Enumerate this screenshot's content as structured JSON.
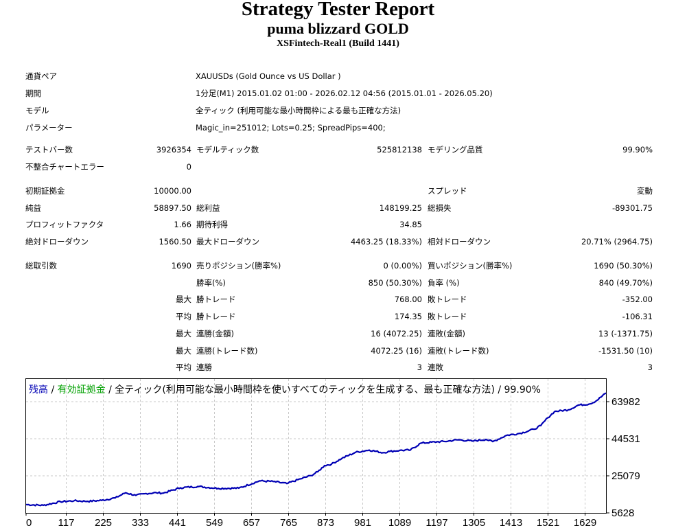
{
  "header": {
    "title": "Strategy Tester Report",
    "ea_name": "puma blizzard GOLD",
    "server": "XSFintech-Real1 (Build 1441)"
  },
  "info": [
    {
      "label": "通貨ペア",
      "value": "XAUUSDs (Gold Ounce vs US Dollar )"
    },
    {
      "label": "期間",
      "value": "1分足(M1) 2015.01.02 01:00 - 2026.02.12 04:56 (2015.01.01 - 2026.05.20)"
    },
    {
      "label": "モデル",
      "value": "全ティック (利用可能な最小時間枠による最も正確な方法)"
    },
    {
      "label": "パラメーター",
      "value": "Magic_in=251012; Lots=0.25; SpreadPips=400;"
    }
  ],
  "stats": {
    "bars_label": "テストバー数",
    "bars": "3926354",
    "ticks_label": "モデルティック数",
    "ticks": "525812138",
    "quality_label": "モデリング品質",
    "quality": "99.90%",
    "mismatch_label": "不整合チャートエラー",
    "mismatch": "0",
    "deposit_label": "初期証拠金",
    "deposit": "10000.00",
    "spread_label": "スプレッド",
    "spread": "変動",
    "net_label": "純益",
    "net": "58897.50",
    "gross_profit_label": "総利益",
    "gross_profit": "148199.25",
    "gross_loss_label": "総損失",
    "gross_loss": "-89301.75",
    "pf_label": "プロフィットファクタ",
    "pf": "1.66",
    "expected_label": "期待利得",
    "expected": "34.85",
    "abs_dd_label": "絶対ドローダウン",
    "abs_dd": "1560.50",
    "max_dd_label": "最大ドローダウン",
    "max_dd": "4463.25 (18.33%)",
    "rel_dd_label": "相対ドローダウン",
    "rel_dd": "20.71% (2964.75)",
    "trades_label": "総取引数",
    "trades": "1690",
    "short_label": "売りポジション(勝率%)",
    "short": "0 (0.00%)",
    "long_label": "買いポジション(勝率%)",
    "long": "1690 (50.30%)",
    "win_label": "勝率(%)",
    "win": "850 (50.30%)",
    "loss_label": "負率 (%)",
    "loss": "840 (49.70%)",
    "max_word": "最大",
    "avg_word": "平均",
    "win_trade_label": "勝トレード",
    "loss_trade_label": "敗トレード",
    "largest_win": "768.00",
    "largest_loss": "-352.00",
    "avg_win": "174.35",
    "avg_loss": "-106.31",
    "consec_win_amt_label": "連勝(金額)",
    "consec_win_amt": "16 (4072.25)",
    "consec_loss_amt_label": "連敗(金額)",
    "consec_loss_amt": "13 (-1371.75)",
    "consec_win_cnt_label": "連勝(トレード数)",
    "consec_win_cnt": "4072.25 (16)",
    "consec_loss_cnt_label": "連敗(トレード数)",
    "consec_loss_cnt": "-1531.50 (10)",
    "avg_consec_win_label": "連勝",
    "avg_consec_win": "3",
    "avg_consec_loss_label": "連敗",
    "avg_consec_loss": "3"
  },
  "chart_data": {
    "type": "line",
    "legend": {
      "balance": "残高",
      "sep1": " / ",
      "equity": "有効証拠金",
      "rest": " / 全ティック(利用可能な最小時間枠を使いすべてのティックを生成する、最も正確な方法) / 99.90%"
    },
    "colors": {
      "balance": "#0000b4",
      "equity": "#00a000",
      "grid": "#c8c8c8"
    },
    "y_ticks": [
      5628,
      25079,
      44531,
      63982
    ],
    "x_ticks": [
      0,
      117,
      225,
      333,
      441,
      549,
      657,
      765,
      873,
      981,
      1089,
      1197,
      1305,
      1413,
      1521,
      1629
    ],
    "xlim": [
      0,
      1690
    ],
    "ylim": [
      5628,
      63982
    ],
    "series": [
      {
        "x": [
          0,
          50,
          100,
          140,
          180,
          220,
          260,
          290,
          320,
          350,
          380,
          400,
          450,
          500,
          560,
          620,
          680,
          720,
          760,
          800,
          830,
          850,
          870,
          890,
          920,
          960,
          1000,
          1040,
          1060,
          1089,
          1120,
          1150,
          1197,
          1220,
          1260,
          1300,
          1340,
          1360,
          1400,
          1440,
          1480,
          1500,
          1520,
          1540,
          1580,
          1610,
          1640,
          1660,
          1690
        ],
        "values": [
          10000,
          9600,
          11500,
          12000,
          11700,
          12200,
          13500,
          16200,
          14800,
          15800,
          16200,
          16000,
          18800,
          19500,
          18500,
          18600,
          22400,
          22100,
          21000,
          23500,
          25200,
          27200,
          30500,
          31200,
          34200,
          37400,
          38600,
          37200,
          37900,
          38400,
          38600,
          42200,
          42900,
          43100,
          44000,
          43300,
          44200,
          43000,
          46300,
          47400,
          49500,
          51400,
          55500,
          58800,
          59700,
          62200,
          62700,
          64200,
          68500
        ]
      }
    ]
  }
}
